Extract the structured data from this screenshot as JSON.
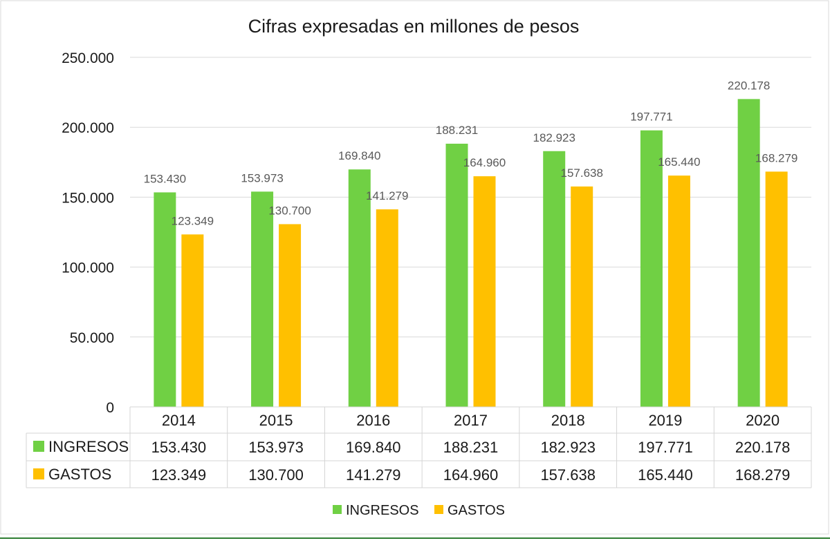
{
  "chart_data": {
    "type": "bar",
    "title": "Cifras expresadas en millones de pesos",
    "categories": [
      "2014",
      "2015",
      "2016",
      "2017",
      "2018",
      "2019",
      "2020"
    ],
    "series": [
      {
        "name": "INGRESOS",
        "color": "#70d044",
        "values": [
          153430,
          153973,
          169840,
          188231,
          182923,
          197771,
          220178
        ],
        "labels": [
          "153.430",
          "153.973",
          "169.840",
          "188.231",
          "182.923",
          "197.771",
          "220.178"
        ]
      },
      {
        "name": "GASTOS",
        "color": "#ffc000",
        "values": [
          123349,
          130700,
          141279,
          164960,
          157638,
          165440,
          168279
        ],
        "labels": [
          "123.349",
          "130.700",
          "141.279",
          "164.960",
          "157.638",
          "165.440",
          "168.279"
        ]
      }
    ],
    "ylim": [
      0,
      250000
    ],
    "yticks": [
      0,
      50000,
      100000,
      150000,
      200000,
      250000
    ],
    "ytick_labels": [
      "0",
      "50.000",
      "100.000",
      "150.000",
      "200.000",
      "250.000"
    ],
    "grid": true,
    "data_table": true,
    "legend_position": "bottom"
  }
}
